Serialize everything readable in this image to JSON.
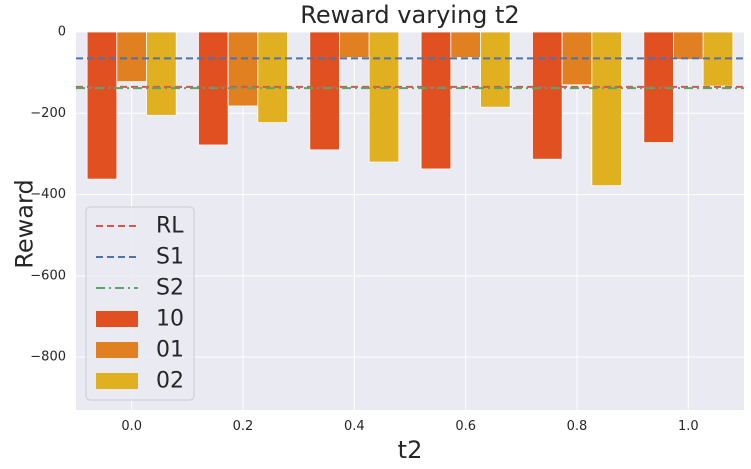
{
  "chart_data": {
    "type": "bar",
    "title": "Reward varying t2",
    "xlabel": "t2",
    "ylabel": "Reward",
    "categories": [
      "0.0",
      "0.2",
      "0.4",
      "0.6",
      "0.8",
      "1.0"
    ],
    "x_ticks": [
      "0.0",
      "0.2",
      "0.4",
      "0.6",
      "0.8",
      "1.0"
    ],
    "y_ticks": [
      0,
      -200,
      -400,
      -600,
      -800
    ],
    "y_tick_labels": [
      "0",
      "−200",
      "−400",
      "−600",
      "−800"
    ],
    "ylim": [
      -930,
      0
    ],
    "xlim": [
      -0.1,
      1.1
    ],
    "grid": true,
    "legend_position": "lower left",
    "series": [
      {
        "name": "10",
        "color": "#e05020",
        "values": [
          -362,
          -278,
          -290,
          -337,
          -313,
          -272
        ]
      },
      {
        "name": "01",
        "color": "#e08020",
        "values": [
          -122,
          -182,
          -63,
          -63,
          -130,
          -68
        ]
      },
      {
        "name": "02",
        "color": "#e0b020",
        "values": [
          -205,
          -223,
          -320,
          -185,
          -378,
          -133
        ]
      }
    ],
    "reference_lines": [
      {
        "name": "RL",
        "value": -135,
        "color": "#d9534f",
        "style": "dashed"
      },
      {
        "name": "S1",
        "value": -65,
        "color": "#4c72b0",
        "style": "dashed"
      },
      {
        "name": "S2",
        "value": -138,
        "color": "#55a868",
        "style": "dashdot"
      }
    ],
    "legend": [
      "RL",
      "S1",
      "S2",
      "10",
      "01",
      "02"
    ]
  }
}
